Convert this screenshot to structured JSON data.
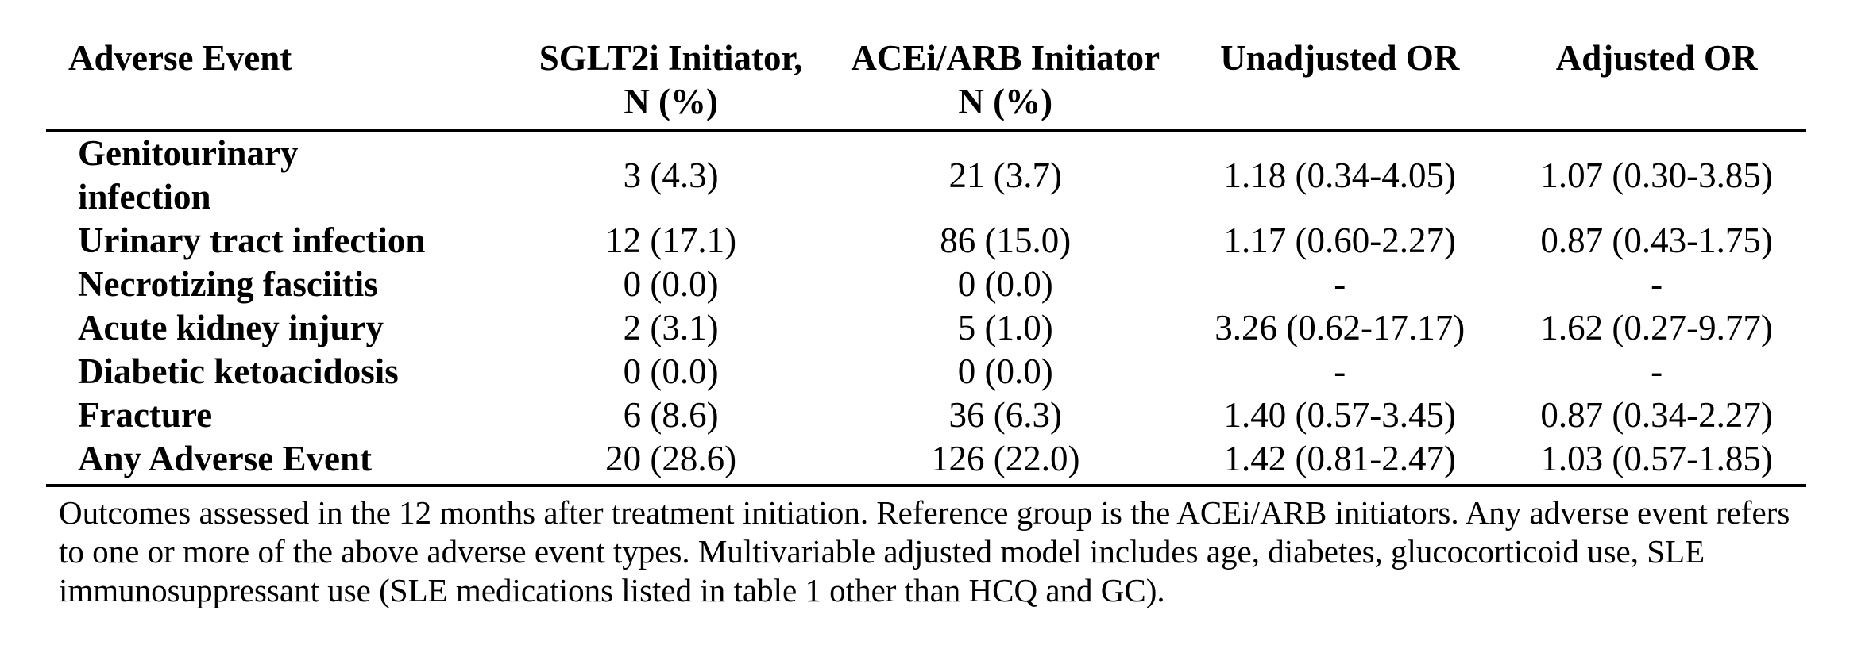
{
  "page": {
    "background_color": "#ffffff",
    "text_color": "#000000",
    "rule_color": "#000000"
  },
  "table": {
    "columns": [
      {
        "id": "event",
        "header_line1": "Adverse Event",
        "header_line2": ""
      },
      {
        "id": "sglt2i",
        "header_line1": "SGLT2i Initiator,",
        "header_line2": "N (%)"
      },
      {
        "id": "acei_arb",
        "header_line1": "ACEi/ARB Initiator",
        "header_line2": "N (%)"
      },
      {
        "id": "unadjusted_or",
        "header_line1": "Unadjusted OR",
        "header_line2": ""
      },
      {
        "id": "adjusted_or",
        "header_line1": "Adjusted OR",
        "header_line2": ""
      }
    ],
    "rows": [
      {
        "event": "Genitourinary infection",
        "sglt2i": "3 (4.3)",
        "acei_arb": "21 (3.7)",
        "unadjusted_or": "1.18 (0.34-4.05)",
        "adjusted_or": "1.07 (0.30-3.85)"
      },
      {
        "event": "Urinary tract infection",
        "sglt2i": "12 (17.1)",
        "acei_arb": "86 (15.0)",
        "unadjusted_or": "1.17 (0.60-2.27)",
        "adjusted_or": "0.87 (0.43-1.75)"
      },
      {
        "event": "Necrotizing fasciitis",
        "sglt2i": "0 (0.0)",
        "acei_arb": "0 (0.0)",
        "unadjusted_or": "-",
        "adjusted_or": "-"
      },
      {
        "event": "Acute kidney injury",
        "sglt2i": "2 (3.1)",
        "acei_arb": "5 (1.0)",
        "unadjusted_or": "3.26 (0.62-17.17)",
        "adjusted_or": "1.62 (0.27-9.77)"
      },
      {
        "event": "Diabetic ketoacidosis",
        "sglt2i": "0 (0.0)",
        "acei_arb": "0 (0.0)",
        "unadjusted_or": "-",
        "adjusted_or": "-"
      },
      {
        "event": "Fracture",
        "sglt2i": "6 (8.6)",
        "acei_arb": "36 (6.3)",
        "unadjusted_or": "1.40 (0.57-3.45)",
        "adjusted_or": "0.87 (0.34-2.27)"
      },
      {
        "event": "Any Adverse Event",
        "sglt2i": "20 (28.6)",
        "acei_arb": "126 (22.0)",
        "unadjusted_or": "1.42 (0.81-2.47)",
        "adjusted_or": "1.03 (0.57-1.85)"
      }
    ]
  },
  "footnote": {
    "text": "Outcomes assessed in the 12 months after treatment initiation. Reference group is the ACEi/ARB initiators. Any adverse event refers to one or more of the above adverse event types. Multivariable adjusted model includes age, diabetes, glucocorticoid use, SLE immunosuppressant use (SLE medications listed in table 1 other than HCQ and GC)."
  }
}
